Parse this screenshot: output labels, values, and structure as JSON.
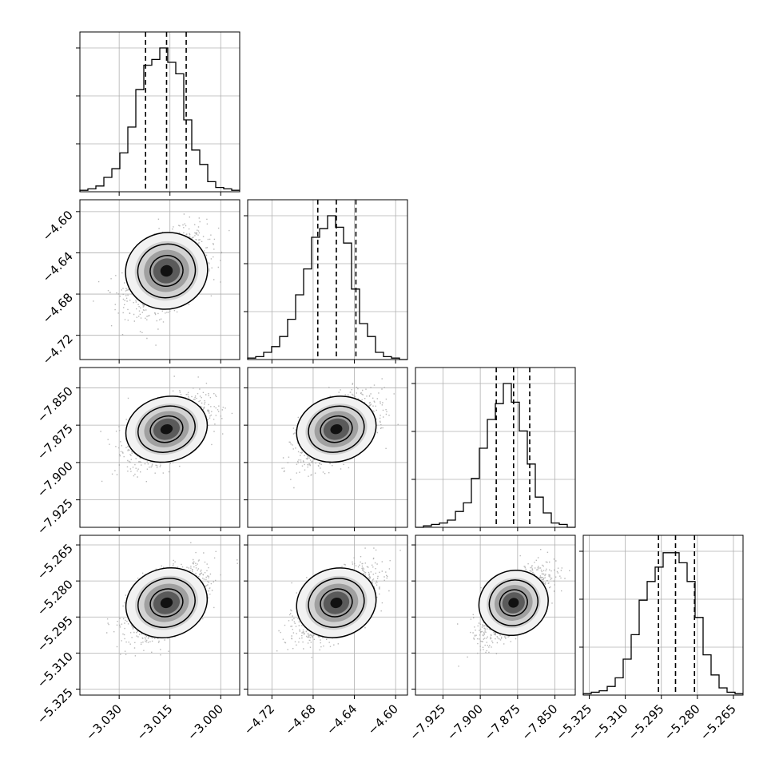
{
  "chart_data": {
    "type": "corner",
    "grid": true,
    "colors": {
      "frame": "#000000",
      "grid": "#b0b0b0",
      "scatter": "#a0a0a0",
      "contour": "#000000",
      "background": "#ffffff"
    },
    "parameters": [
      {
        "range": [
          -3.0416,
          -2.9944
        ],
        "ticks": [
          -3.03,
          -3.015,
          -3.0
        ],
        "tick_labels": [
          "−3.030",
          "−3.015",
          "−3.000"
        ],
        "quantiles": [
          -3.0222,
          -3.016,
          -3.0102
        ],
        "median": -3.016,
        "sigma": 0.0058
      },
      {
        "range": [
          -4.7435,
          -4.5885
        ],
        "ticks": [
          -4.72,
          -4.68,
          -4.64,
          -4.6
        ],
        "tick_labels": [
          "−4.72",
          "−4.68",
          "−4.64",
          "−4.60"
        ],
        "quantiles": [
          -4.6755,
          -4.6575,
          -4.6385
        ],
        "median": -4.6575,
        "sigma": 0.0186
      },
      {
        "range": [
          -7.9434,
          -7.8364
        ],
        "ticks": [
          -7.925,
          -7.9,
          -7.875,
          -7.85
        ],
        "tick_labels": [
          "−7.925",
          "−7.900",
          "−7.875",
          "−7.850"
        ],
        "quantiles": [
          -7.8893,
          -7.8777,
          -7.8669
        ],
        "median": -7.8777,
        "sigma": 0.0112
      },
      {
        "range": [
          -5.3275,
          -5.261
        ],
        "ticks": [
          -5.325,
          -5.31,
          -5.295,
          -5.28,
          -5.265
        ],
        "tick_labels": [
          "−5.325",
          "−5.310",
          "−5.295",
          "−5.280",
          "−5.265"
        ],
        "quantiles": [
          -5.2962,
          -5.2891,
          -5.2812
        ],
        "median": -5.2891,
        "sigma": 0.0075
      }
    ],
    "correlations": [
      [
        1.0,
        0.45,
        0.55,
        0.6
      ],
      [
        0.45,
        1.0,
        0.55,
        0.6
      ],
      [
        0.55,
        0.55,
        1.0,
        0.75
      ],
      [
        0.6,
        0.6,
        0.75,
        1.0
      ]
    ],
    "histograms": [
      [
        0.01,
        0.02,
        0.04,
        0.1,
        0.16,
        0.27,
        0.45,
        0.71,
        0.88,
        0.92,
        1.0,
        0.9,
        0.82,
        0.5,
        0.29,
        0.19,
        0.07,
        0.03,
        0.02,
        0.01
      ],
      [
        0.01,
        0.02,
        0.05,
        0.09,
        0.16,
        0.28,
        0.45,
        0.63,
        0.85,
        0.91,
        1.0,
        0.92,
        0.81,
        0.49,
        0.25,
        0.16,
        0.05,
        0.02,
        0.01,
        0.0
      ],
      [
        0.0,
        0.01,
        0.02,
        0.03,
        0.05,
        0.11,
        0.17,
        0.34,
        0.55,
        0.75,
        0.86,
        1.0,
        0.87,
        0.67,
        0.44,
        0.21,
        0.1,
        0.03,
        0.02,
        0.0
      ],
      [
        0.01,
        0.02,
        0.03,
        0.06,
        0.12,
        0.25,
        0.42,
        0.66,
        0.79,
        0.89,
        0.99,
        0.99,
        0.92,
        0.79,
        0.54,
        0.28,
        0.14,
        0.05,
        0.02,
        0.01
      ]
    ]
  }
}
